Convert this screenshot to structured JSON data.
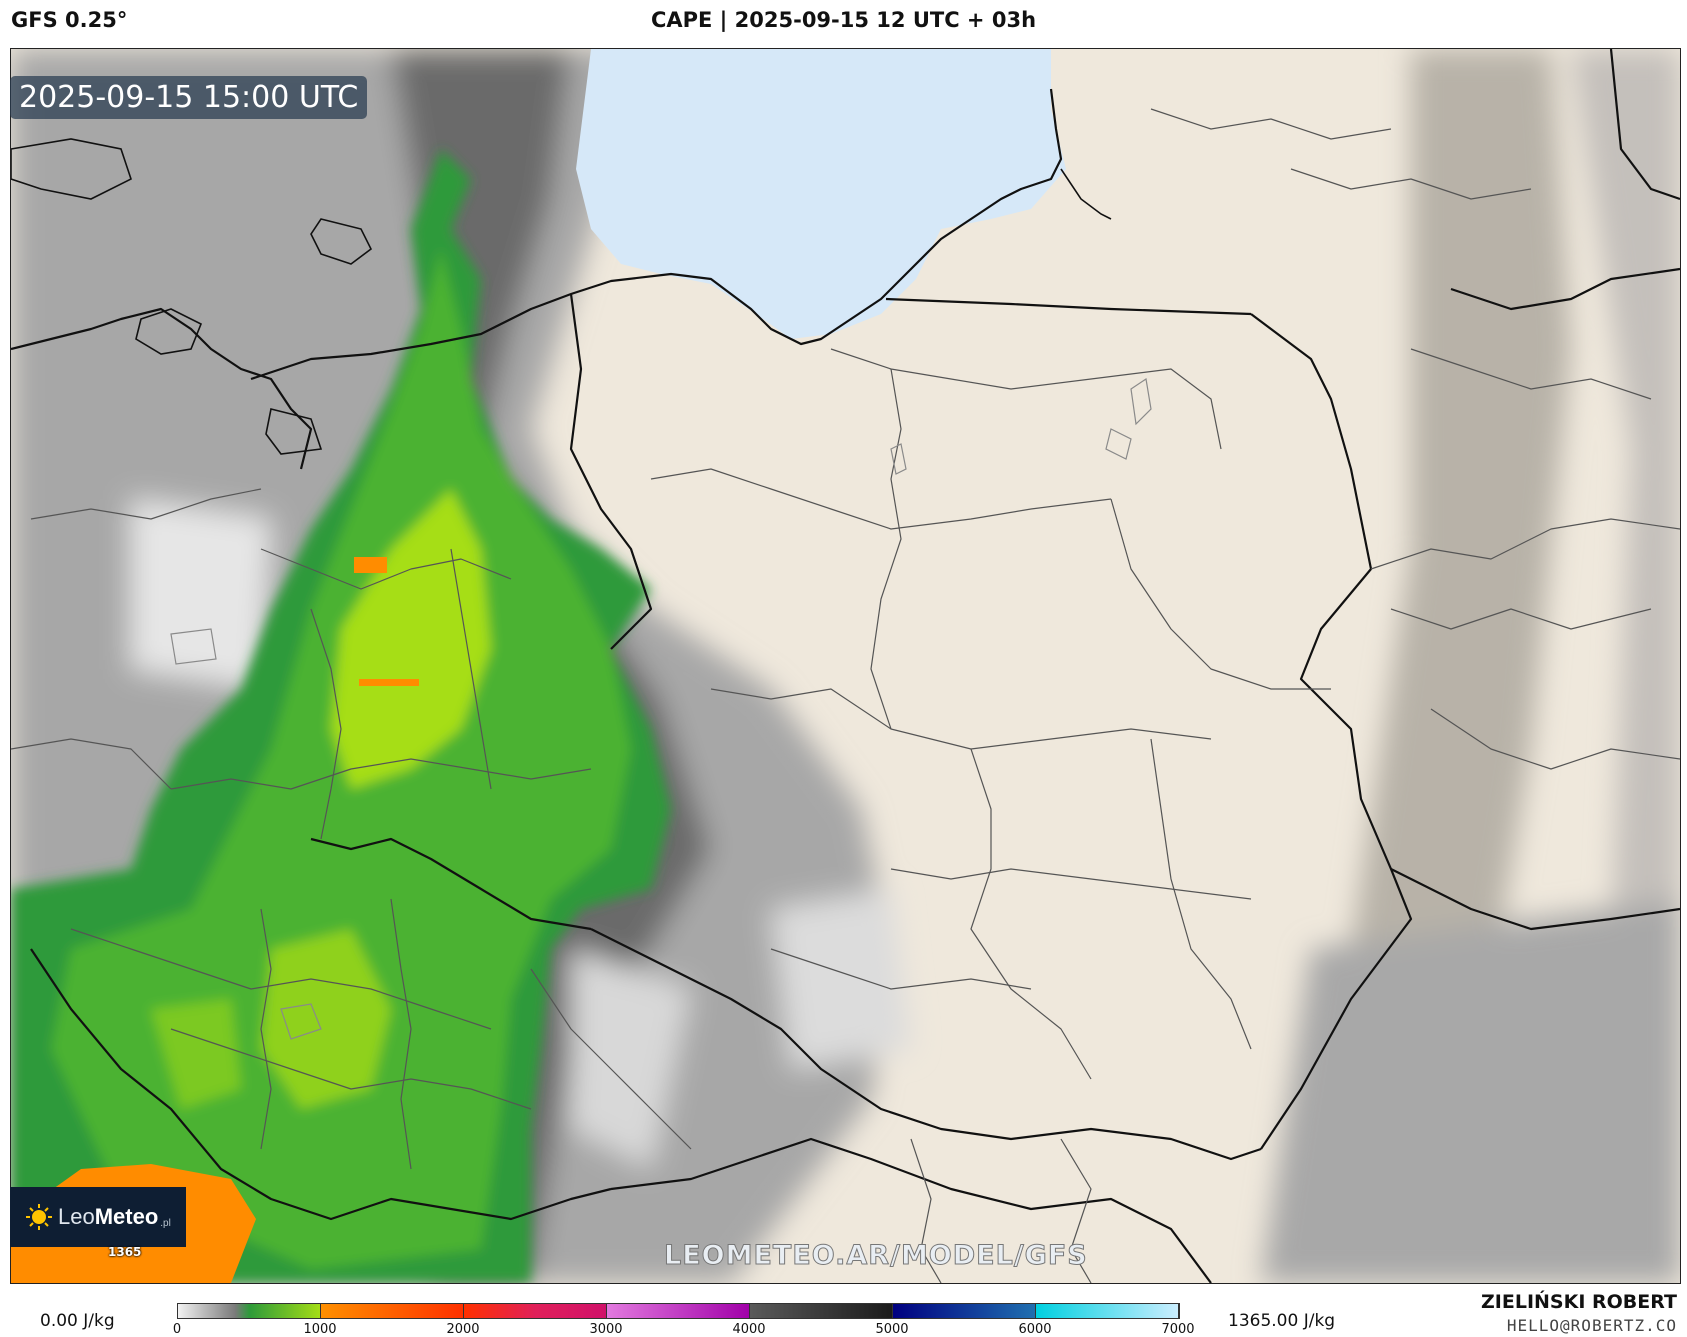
{
  "header": {
    "model": "GFS 0.25°",
    "title": "CAPE | 2025-09-15 12 UTC + 03h"
  },
  "map": {
    "valid_time": "2025-09-15 15:00 UTC",
    "max_marker": "1365",
    "watermark": "LEOMETEO.AR/MODEL/GFS",
    "colors": {
      "sea": "#d6e8f8",
      "land": "#efe8dc",
      "low_cape_gray": "#9a9a9a",
      "green_dark": "#2e9a3a",
      "green_mid": "#55b82b",
      "green_light": "#a6de16",
      "orange": "#ff8c00",
      "borders": "#111111",
      "regions": "#555555"
    }
  },
  "logo": {
    "leo": "Leo",
    "meteo": "Meteo",
    "suffix": ".pl"
  },
  "colorbar": {
    "min_label": "0.00 J/kg",
    "current_label": "1365.00 J/kg",
    "range": [
      0,
      7000
    ],
    "ticks": [
      "0",
      "1000",
      "2000",
      "3000",
      "4000",
      "5000",
      "6000",
      "7000"
    ],
    "stops": [
      {
        "v": 0,
        "c": "#f2f2f2"
      },
      {
        "v": 400,
        "c": "#7a7a7a"
      },
      {
        "v": 500,
        "c": "#2e9a3a"
      },
      {
        "v": 1000,
        "c": "#a6de16"
      },
      {
        "v": 1001,
        "c": "#ff9000"
      },
      {
        "v": 2000,
        "c": "#ff3000"
      },
      {
        "v": 2500,
        "c": "#e0205a"
      },
      {
        "v": 3000,
        "c": "#d0106a"
      },
      {
        "v": 3001,
        "c": "#e27adf"
      },
      {
        "v": 4000,
        "c": "#a000a8"
      },
      {
        "v": 4001,
        "c": "#5a5a5a"
      },
      {
        "v": 5000,
        "c": "#1a1a1a"
      },
      {
        "v": 5001,
        "c": "#000080"
      },
      {
        "v": 6000,
        "c": "#2070b0"
      },
      {
        "v": 6001,
        "c": "#00d0e0"
      },
      {
        "v": 7000,
        "c": "#cceeff"
      }
    ]
  },
  "credits": {
    "author": "ZIELIŃSKI ROBERT",
    "email": "HELLO@ROBERTZ.CO"
  }
}
